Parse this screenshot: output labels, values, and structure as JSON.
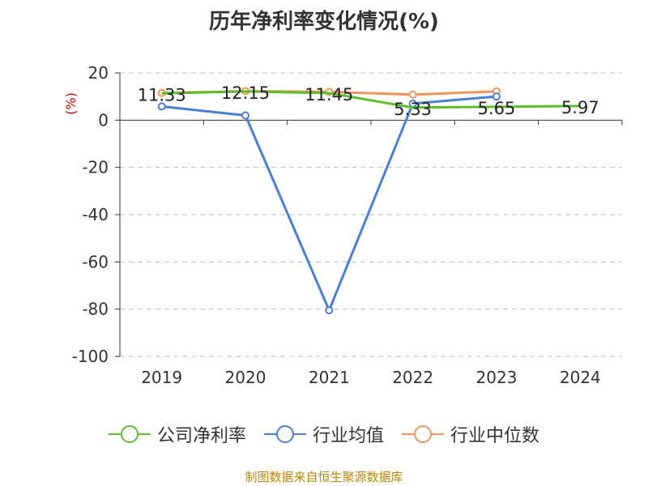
{
  "title": "历年净利率变化情况(%)",
  "source": "制图数据来自恒生聚源数据库",
  "colors": {
    "company": "#5cbf2a",
    "industry_avg": "#4a7ed9",
    "industry_median": "#f5935a",
    "ylabel": "#cc0000",
    "axis": "#333333",
    "grid": "#bbbbbb"
  },
  "chart_data": {
    "type": "line",
    "title": "历年净利率变化情况(%)",
    "ylabel": "(%)",
    "xlabel": "",
    "ylim": [
      -100,
      20
    ],
    "yticks": [
      20,
      0,
      -20,
      -40,
      -60,
      -80,
      -100
    ],
    "grid": true,
    "legend_position": "bottom",
    "categories": [
      "2019",
      "2020",
      "2021",
      "2022",
      "2023",
      "2024"
    ],
    "series": [
      {
        "name": "公司净利率",
        "color": "#5cbf2a",
        "values": [
          11.33,
          12.15,
          11.45,
          5.33,
          5.65,
          5.97
        ],
        "labels": true,
        "markers": false
      },
      {
        "name": "行业均值",
        "color": "#4a7ed9",
        "values": [
          5.8,
          2.0,
          -80.5,
          7.0,
          10.0,
          null
        ],
        "labels": false,
        "markers": true
      },
      {
        "name": "行业中位数",
        "color": "#f5935a",
        "values": [
          11.5,
          12.3,
          12.0,
          10.8,
          12.2,
          null
        ],
        "labels": false,
        "markers": true
      }
    ]
  }
}
